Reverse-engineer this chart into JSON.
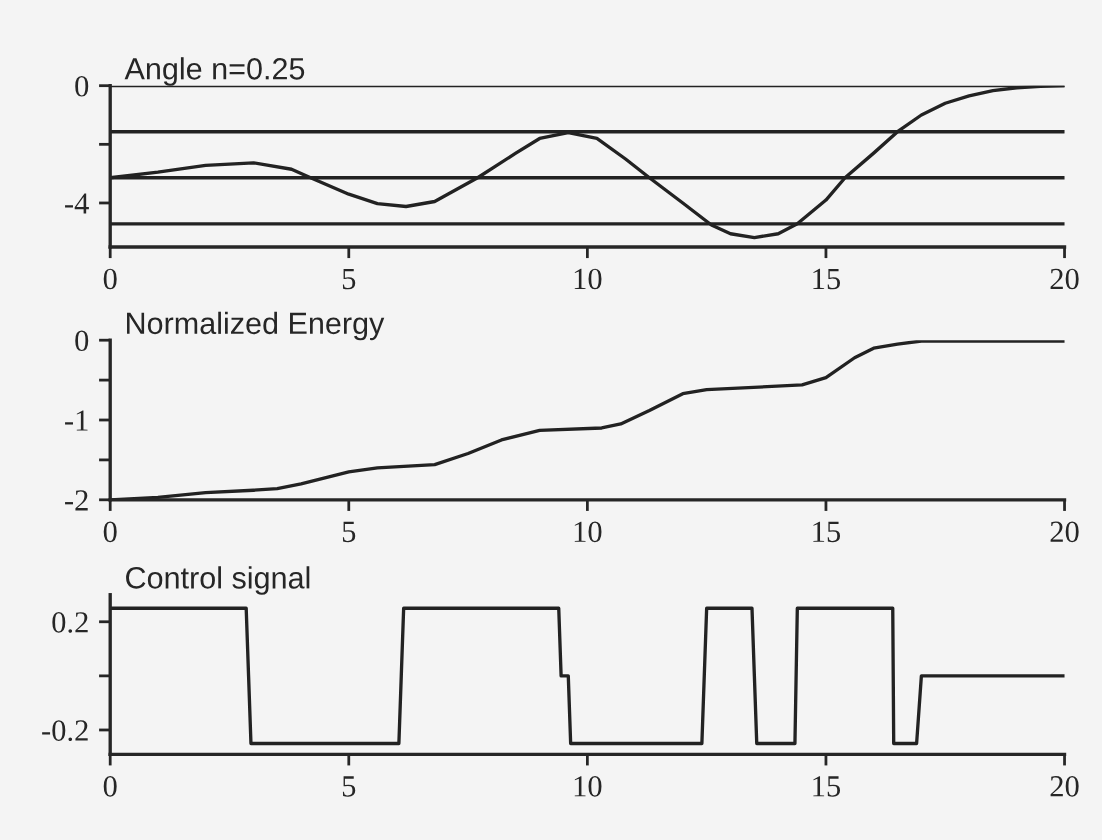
{
  "chart_data": [
    {
      "type": "line",
      "title": "Angle n=0.25",
      "xlim": [
        0,
        20
      ],
      "xticks": [
        0,
        5,
        10,
        15,
        20
      ],
      "ylim": [
        -5.5,
        0
      ],
      "yticks": [
        0,
        {
          "value": -2,
          "label": null
        },
        -4
      ],
      "ref_lines": [
        {
          "axis": "y",
          "value": 0,
          "color": "#222222"
        },
        {
          "axis": "y",
          "value": -1.57,
          "color": "#222222"
        },
        {
          "axis": "y",
          "value": -3.14,
          "color": "#222222"
        },
        {
          "axis": "y",
          "value": -4.71,
          "color": "#222222"
        }
      ],
      "series": [
        {
          "color": "#222222",
          "x": [
            0,
            1,
            2,
            3,
            3.8,
            4.2,
            5,
            5.6,
            6.2,
            6.8,
            7.7,
            8.5,
            9.0,
            9.6,
            10.2,
            10.8,
            11.3,
            12.0,
            12.6,
            13.0,
            13.5,
            14.0,
            14.4,
            15.0,
            15.4,
            16.0,
            16.5,
            17.0,
            17.5,
            18.0,
            18.5,
            19.0,
            19.5,
            20
          ],
          "values": [
            -3.14,
            -2.95,
            -2.72,
            -2.63,
            -2.85,
            -3.14,
            -3.7,
            -4.02,
            -4.12,
            -3.95,
            -3.14,
            -2.3,
            -1.8,
            -1.6,
            -1.8,
            -2.5,
            -3.14,
            -4.0,
            -4.75,
            -5.05,
            -5.18,
            -5.05,
            -4.71,
            -3.9,
            -3.14,
            -2.3,
            -1.57,
            -1.0,
            -0.6,
            -0.35,
            -0.17,
            -0.07,
            -0.02,
            0
          ]
        }
      ]
    },
    {
      "type": "line",
      "title": "Normalized Energy",
      "xlim": [
        0,
        20
      ],
      "xticks": [
        0,
        5,
        10,
        15,
        20
      ],
      "ylim": [
        -2,
        0
      ],
      "yticks": [
        0,
        {
          "value": -0.5,
          "label": null
        },
        -1,
        {
          "value": -1.5,
          "label": null
        },
        -2
      ],
      "series": [
        {
          "color": "#222222",
          "x": [
            0,
            1,
            2,
            3,
            3.5,
            4,
            5,
            5.6,
            6.8,
            7.5,
            8.2,
            9,
            10.3,
            10.7,
            11.3,
            12,
            12.5,
            14.5,
            15,
            15.6,
            16,
            16.5,
            17,
            20
          ],
          "values": [
            -2,
            -1.97,
            -1.91,
            -1.88,
            -1.86,
            -1.8,
            -1.65,
            -1.6,
            -1.56,
            -1.42,
            -1.25,
            -1.13,
            -1.1,
            -1.05,
            -0.88,
            -0.67,
            -0.62,
            -0.56,
            -0.47,
            -0.22,
            -0.1,
            -0.05,
            -0.01,
            -0.01
          ]
        }
      ]
    },
    {
      "type": "line",
      "title": "Control signal",
      "xlim": [
        0,
        20
      ],
      "xticks": [
        0,
        5,
        10,
        15,
        20
      ],
      "ylim": [
        -0.29,
        0.3
      ],
      "yticks": [
        0.2,
        {
          "value": 0,
          "label": null
        },
        -0.2
      ],
      "series": [
        {
          "color": "#222222",
          "x": [
            0,
            2.85,
            2.9,
            2.95,
            6.05,
            6.1,
            6.15,
            9.4,
            9.45,
            9.6,
            9.65,
            12.4,
            12.5,
            13.45,
            13.5,
            13.55,
            14.35,
            14.4,
            16.4,
            16.42,
            16.9,
            17.0,
            20
          ],
          "values": [
            0.25,
            0.25,
            0,
            -0.25,
            -0.25,
            0,
            0.25,
            0.25,
            0,
            0,
            -0.25,
            -0.25,
            0.25,
            0.25,
            0,
            -0.25,
            -0.25,
            0.25,
            0.25,
            -0.25,
            -0.25,
            0,
            0
          ]
        }
      ]
    }
  ]
}
